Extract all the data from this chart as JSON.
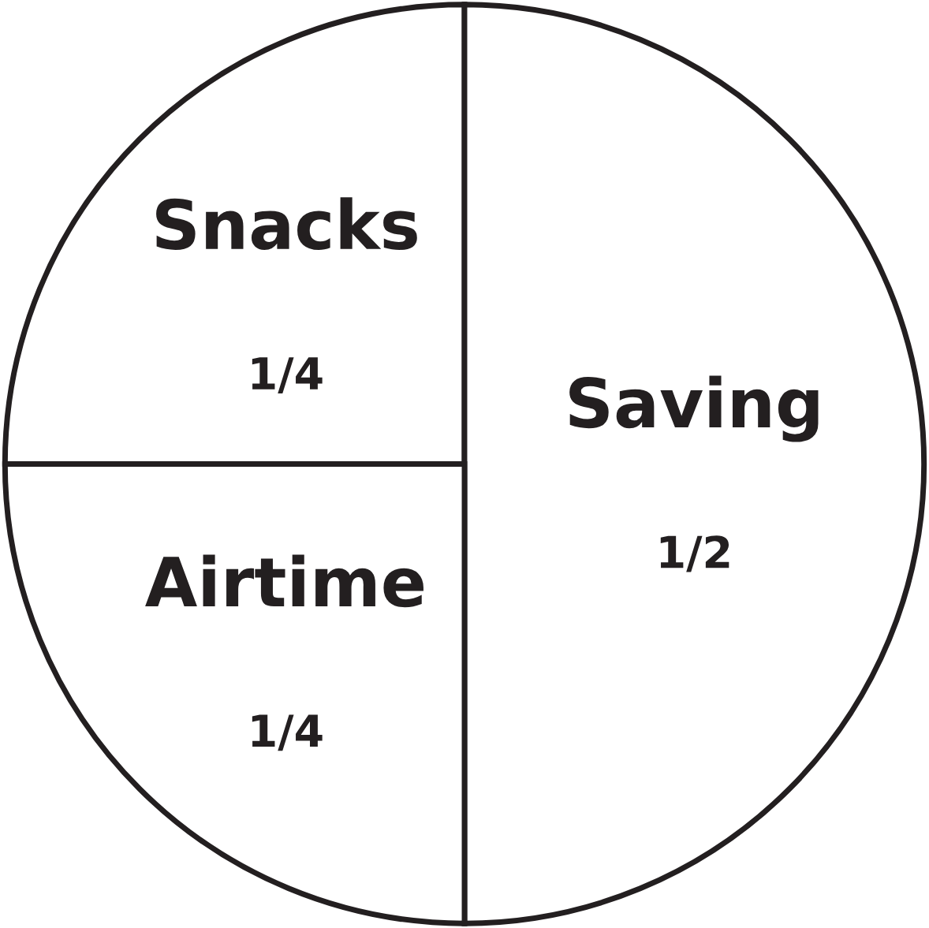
{
  "chart_data": {
    "type": "pie",
    "categories": [
      "Snacks",
      "Saving",
      "Airtime"
    ],
    "values": [
      0.25,
      0.5,
      0.25
    ],
    "value_labels": [
      "1/4",
      "1/2",
      "1/4"
    ],
    "colors": [
      "#ffffff",
      "#ffffff",
      "#ffffff"
    ]
  }
}
